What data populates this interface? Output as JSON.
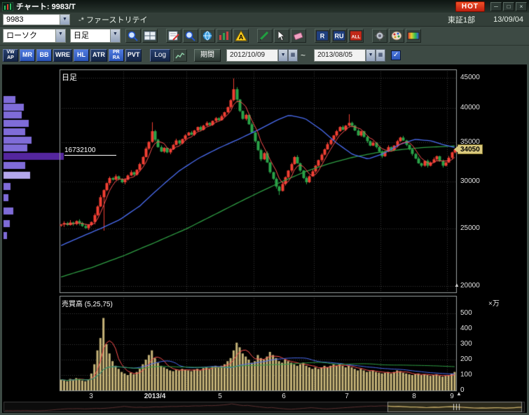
{
  "window": {
    "title": "チャート: 9983/T",
    "hot_label": "HOT",
    "buttons": [
      {
        "name": "minimize-button",
        "glyph": "─"
      },
      {
        "name": "maximize-button",
        "glyph": "□"
      },
      {
        "name": "close-button",
        "glyph": "×"
      }
    ]
  },
  "symbolbar": {
    "code": "9983",
    "name": "-* ファーストリテイ",
    "market": "東証1部",
    "date": "13/09/04"
  },
  "toolbar1": {
    "chart_type": "ローソク",
    "timeframe": "日足",
    "icons": [
      {
        "name": "zoom-icon",
        "kind": "magnifier",
        "gap": 0
      },
      {
        "name": "multi-chart-icon",
        "kind": "grid",
        "gap": 0
      },
      {
        "name": "memo-icon",
        "kind": "note",
        "gap": 1
      },
      {
        "name": "news-search-icon",
        "kind": "magnifier",
        "gap": 0
      },
      {
        "name": "web-icon",
        "kind": "globe",
        "gap": 0
      },
      {
        "name": "mini-board-icon",
        "kind": "chart",
        "gap": 0
      },
      {
        "name": "alert-icon",
        "kind": "warn",
        "gap": 0
      },
      {
        "name": "draw-line-icon",
        "kind": "pencil",
        "gap": 1
      },
      {
        "name": "cursor-icon",
        "kind": "arrow",
        "gap": 0
      },
      {
        "name": "eraser-icon",
        "kind": "eraser",
        "gap": 0
      },
      {
        "name": "r-tool-icon",
        "kind": "letter",
        "t": "R",
        "bg": "#204080",
        "fg": "#ffffff",
        "gap": 1
      },
      {
        "name": "ru-tool-icon",
        "kind": "letter",
        "t": "RU",
        "bg": "#204080",
        "fg": "#ffffff",
        "gap": 0
      },
      {
        "name": "all-icon",
        "kind": "letter",
        "t": "ALL",
        "bg": "#c02818",
        "fg": "#ffffff",
        "gap": 0
      },
      {
        "name": "settings-gear-icon",
        "kind": "gear",
        "gap": 1
      },
      {
        "name": "palette-icon",
        "kind": "palette",
        "gap": 0
      },
      {
        "name": "gradient-icon",
        "kind": "gradient",
        "gap": 0
      }
    ]
  },
  "toolbar2": {
    "indicators": [
      {
        "l1": "VW",
        "l2": "AP",
        "active": false
      },
      {
        "l1": "MR",
        "active": true
      },
      {
        "l1": "BB",
        "active": true
      },
      {
        "l1": "WRE",
        "active": false
      },
      {
        "l1": "HL",
        "active": true
      },
      {
        "l1": "ATR",
        "active": false
      },
      {
        "l1": "PR",
        "l2": "RA",
        "active": true
      },
      {
        "l1": "PVT",
        "active": false
      }
    ],
    "log_label": "Log",
    "period_label": "期間",
    "date_from": "2012/10/09",
    "date_to": "2013/08/05",
    "tilde": "~",
    "check_glyph": "✓",
    "dd_glyph": "▼",
    "cal_glyph": "▦"
  },
  "chart": {
    "panel_label": "日足",
    "volume_label": "売買高 (5,25,75)",
    "volume_unit": "×万",
    "profile_max_label": "16732100",
    "current_price_label": "34050"
  },
  "chart_data": {
    "type": "candlestick",
    "title": "9983/T ファーストリテイ 日足",
    "y_axis": {
      "scale": "log",
      "range": [
        19500,
        45500
      ],
      "ticks": [
        45000,
        40000,
        35000,
        30000,
        25000,
        20000
      ]
    },
    "volume_axis": {
      "max": 500,
      "ticks": [
        500,
        400,
        300,
        200,
        100,
        0
      ],
      "unit": "×万"
    },
    "months": {
      "labels": [
        {
          "t": "3"
        },
        {
          "t": "2013/4",
          "b": true
        },
        {
          "t": "5"
        },
        {
          "t": "6"
        },
        {
          "t": "7"
        },
        {
          "t": "8"
        },
        {
          "t": "9"
        }
      ],
      "starts": [
        0,
        21,
        42,
        64,
        84,
        106,
        128
      ]
    },
    "open_first": 25300,
    "closes": [
      25400,
      25550,
      25350,
      25600,
      25450,
      25750,
      25550,
      25250,
      25050,
      25350,
      25650,
      26350,
      27250,
      28250,
      29050,
      29850,
      30450,
      30250,
      30650,
      30350,
      29950,
      30250,
      30750,
      31150,
      30850,
      31450,
      32150,
      33050,
      34150,
      35050,
      36550,
      35350,
      34350,
      33750,
      34250,
      33650,
      34050,
      34650,
      35250,
      34850,
      35450,
      35950,
      36350,
      36050,
      36650,
      37150,
      36750,
      37350,
      37750,
      37450,
      38050,
      38450,
      38150,
      38750,
      39350,
      40150,
      41250,
      43050,
      41350,
      39550,
      38350,
      38950,
      37550,
      36350,
      35150,
      33950,
      32750,
      33550,
      32350,
      31150,
      30350,
      29450,
      28950,
      29750,
      30550,
      31350,
      32150,
      33050,
      32250,
      31350,
      30450,
      29950,
      30650,
      31250,
      31950,
      32650,
      33350,
      34050,
      34750,
      35350,
      35950,
      36550,
      37150,
      36750,
      37350,
      37750,
      37350,
      36650,
      35950,
      36550,
      35750,
      35150,
      34550,
      34950,
      34350,
      33750,
      33150,
      33750,
      34350,
      33950,
      34550,
      35150,
      35650,
      35250,
      34650,
      34050,
      33450,
      32850,
      32250,
      31950,
      32550,
      31950,
      32350,
      32750,
      33150,
      32550,
      31950,
      32350,
      32950,
      33650,
      34050
    ],
    "volumes": [
      70,
      65,
      60,
      75,
      70,
      80,
      75,
      65,
      60,
      70,
      110,
      170,
      260,
      340,
      470,
      300,
      240,
      190,
      160,
      140,
      120,
      110,
      100,
      115,
      105,
      120,
      140,
      170,
      200,
      230,
      260,
      210,
      180,
      160,
      150,
      140,
      130,
      125,
      135,
      130,
      140,
      135,
      130,
      125,
      135,
      140,
      130,
      145,
      150,
      140,
      155,
      160,
      150,
      160,
      170,
      190,
      210,
      260,
      310,
      280,
      240,
      220,
      200,
      180,
      190,
      230,
      210,
      200,
      220,
      250,
      230,
      210,
      190,
      180,
      200,
      190,
      180,
      170,
      160,
      170,
      180,
      160,
      150,
      140,
      150,
      140,
      150,
      160,
      150,
      160,
      170,
      160,
      170,
      160,
      150,
      160,
      150,
      140,
      130,
      140,
      130,
      120,
      125,
      130,
      120,
      115,
      110,
      115,
      120,
      110,
      120,
      130,
      125,
      115,
      110,
      105,
      100,
      105,
      110,
      100,
      105,
      100,
      95,
      100,
      105,
      95,
      90,
      95,
      100,
      110,
      120
    ],
    "wick": {
      "amps": [
        60,
        180,
        120,
        240,
        90
      ]
    },
    "wick_overrides": {
      "14": [
        null,
        24800
      ],
      "30": [
        37850,
        null
      ],
      "57": [
        44900,
        41050
      ],
      "58": [
        43400,
        40900
      ],
      "72": [
        null,
        28500
      ],
      "95": [
        39050,
        null
      ]
    },
    "ma25_points": [
      [
        0,
        23400
      ],
      [
        0.05,
        24200
      ],
      [
        0.1,
        25000
      ],
      [
        0.15,
        25900
      ],
      [
        0.2,
        27300
      ],
      [
        0.25,
        29300
      ],
      [
        0.3,
        31300
      ],
      [
        0.35,
        32900
      ],
      [
        0.4,
        34200
      ],
      [
        0.45,
        35400
      ],
      [
        0.5,
        36700
      ],
      [
        0.55,
        38200
      ],
      [
        0.58,
        38900
      ],
      [
        0.62,
        38400
      ],
      [
        0.66,
        36800
      ],
      [
        0.7,
        34900
      ],
      [
        0.74,
        33400
      ],
      [
        0.78,
        32800
      ],
      [
        0.82,
        33500
      ],
      [
        0.86,
        34700
      ],
      [
        0.9,
        35400
      ],
      [
        0.94,
        35200
      ],
      [
        0.97,
        34700
      ],
      [
        1,
        34300
      ]
    ],
    "ma75_points": [
      [
        0,
        20700
      ],
      [
        0.08,
        21500
      ],
      [
        0.16,
        22500
      ],
      [
        0.24,
        23700
      ],
      [
        0.32,
        25000
      ],
      [
        0.4,
        26600
      ],
      [
        0.48,
        28300
      ],
      [
        0.56,
        30000
      ],
      [
        0.62,
        31200
      ],
      [
        0.68,
        32200
      ],
      [
        0.74,
        33000
      ],
      [
        0.8,
        33600
      ],
      [
        0.86,
        34000
      ],
      [
        0.92,
        34300
      ],
      [
        1,
        34500
      ]
    ],
    "profile_bins": [
      {
        "p": 41300,
        "v": 0.2,
        "s": "mid"
      },
      {
        "p": 40100,
        "v": 0.34,
        "s": "mid"
      },
      {
        "p": 38900,
        "v": 0.3,
        "s": "mid"
      },
      {
        "p": 37700,
        "v": 0.42,
        "s": "mid"
      },
      {
        "p": 36500,
        "v": 0.36,
        "s": "mid"
      },
      {
        "p": 35300,
        "v": 0.46,
        "s": "mid"
      },
      {
        "p": 34200,
        "v": 0.4,
        "s": "mid"
      },
      {
        "p": 33100,
        "v": 1.0,
        "s": "dark"
      },
      {
        "p": 32000,
        "v": 0.36,
        "s": "mid"
      },
      {
        "p": 30800,
        "v": 0.44,
        "s": "light"
      },
      {
        "p": 29500,
        "v": 0.12,
        "s": "mid"
      },
      {
        "p": 28200,
        "v": 0.08,
        "s": "mid"
      },
      {
        "p": 26800,
        "v": 0.16,
        "s": "mid"
      },
      {
        "p": 25500,
        "v": 0.1,
        "s": "mid"
      },
      {
        "p": 24300,
        "v": 0.06,
        "s": "mid"
      }
    ],
    "current_price": 34050,
    "colors": {
      "up": "#f23f33",
      "down": "#2aa348",
      "ma5": "#ff5050",
      "ma25": "#4a6cf0",
      "ma75": "#2f9e44",
      "volume": "#c6b478",
      "grid": "#3a3a3a",
      "frame": "#9aa0a0",
      "profile_mid": "#7f6cd8",
      "profile_dark": "#54269e",
      "profile_light": "#b4a8ec",
      "nav": "#c8b26a",
      "nav_dim": "#5a3030"
    }
  }
}
